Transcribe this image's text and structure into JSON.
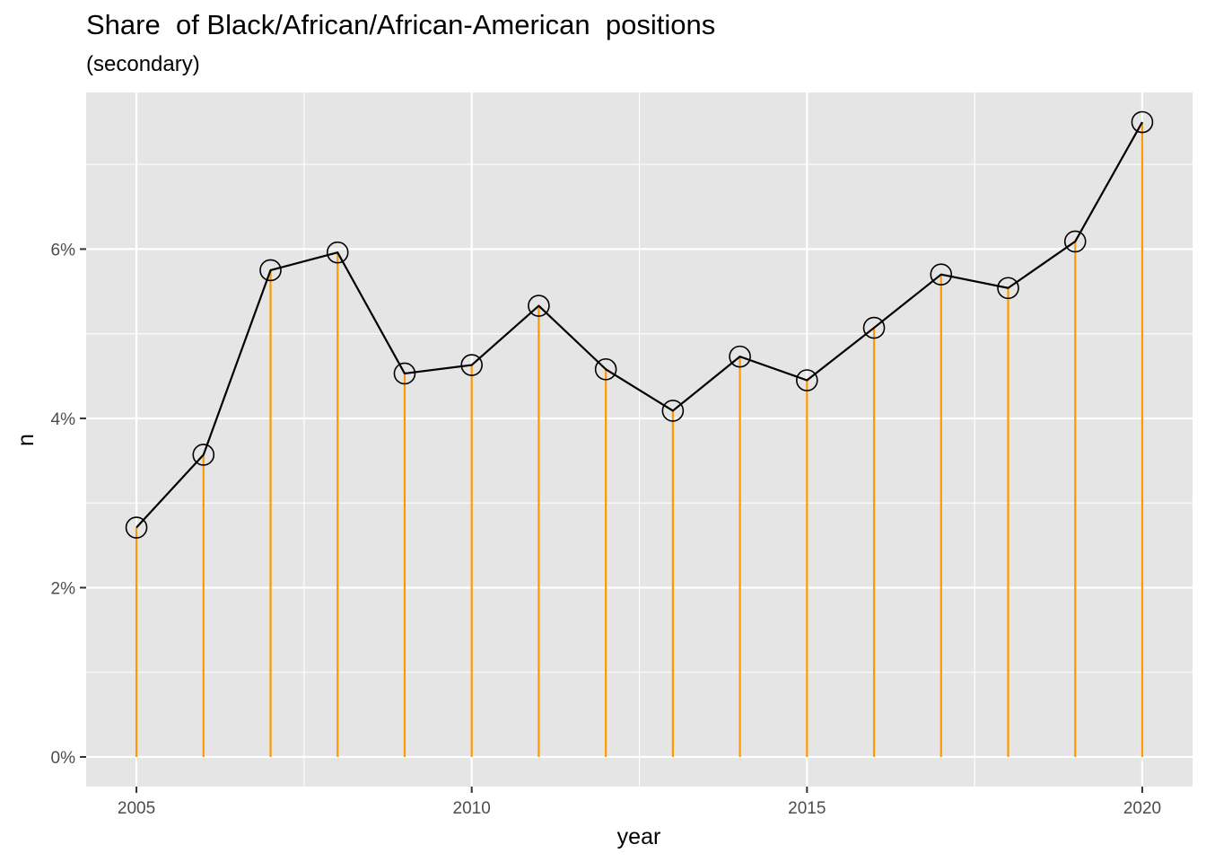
{
  "chart_data": {
    "type": "line",
    "title": "Share  of Black/African/African-American  positions",
    "subtitle": "(secondary)",
    "xlabel": "year",
    "ylabel": "n",
    "x": [
      2005,
      2006,
      2007,
      2008,
      2009,
      2010,
      2011,
      2012,
      2013,
      2014,
      2015,
      2016,
      2017,
      2018,
      2019,
      2020
    ],
    "y": [
      0.0271,
      0.0357,
      0.0575,
      0.0596,
      0.0453,
      0.0463,
      0.0533,
      0.0458,
      0.0409,
      0.0473,
      0.0445,
      0.0507,
      0.057,
      0.0554,
      0.0609,
      0.075
    ],
    "xlim": [
      2004.25,
      2020.75
    ],
    "ylim": [
      -0.0035,
      0.0785
    ],
    "x_ticks": [
      2005,
      2010,
      2015,
      2020
    ],
    "x_tick_labels": [
      "2005",
      "2010",
      "2015",
      "2020"
    ],
    "y_ticks": [
      0,
      0.02,
      0.04,
      0.06
    ],
    "y_tick_labels": [
      "0%",
      "2%",
      "4%",
      "6%"
    ],
    "grid": true,
    "legend": "none",
    "colors": {
      "panel_background": "#e5e5e5",
      "grid": "#ffffff",
      "line": "#000000",
      "stem": "#ff9900",
      "point_stroke": "#000000"
    }
  }
}
